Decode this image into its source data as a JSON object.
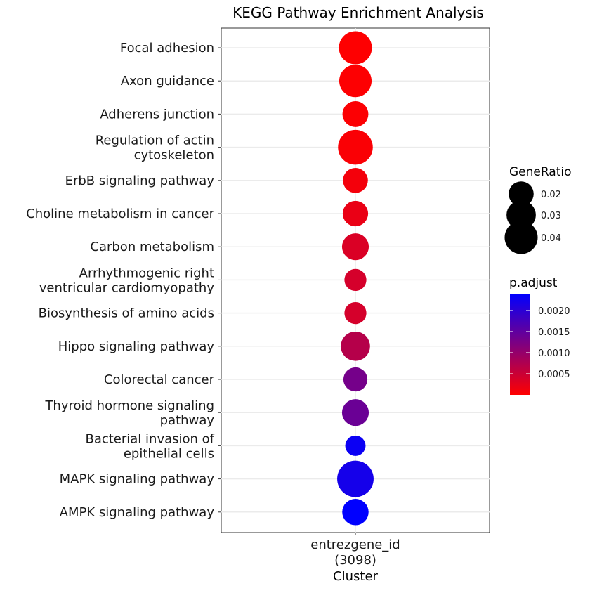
{
  "chart_data": {
    "type": "scatter",
    "title": "KEGG Pathway Enrichment Analysis",
    "xlabel": "Cluster",
    "x_categories": [
      {
        "line1": "entrezgene_id",
        "line2": "(3098)"
      }
    ],
    "points": [
      {
        "label": [
          "Focal adhesion"
        ],
        "gene_ratio": 0.04,
        "p_adjust": 1e-05
      },
      {
        "label": [
          "Axon guidance"
        ],
        "gene_ratio": 0.038,
        "p_adjust": 2e-05
      },
      {
        "label": [
          "Adherens junction"
        ],
        "gene_ratio": 0.022,
        "p_adjust": 3e-05
      },
      {
        "label": [
          "Regulation of actin",
          "cytoskeleton"
        ],
        "gene_ratio": 0.045,
        "p_adjust": 5e-05
      },
      {
        "label": [
          "ErbB signaling pathway"
        ],
        "gene_ratio": 0.02,
        "p_adjust": 0.0001
      },
      {
        "label": [
          "Choline metabolism in cancer"
        ],
        "gene_ratio": 0.021,
        "p_adjust": 0.0002
      },
      {
        "label": [
          "Carbon metabolism"
        ],
        "gene_ratio": 0.024,
        "p_adjust": 0.00035
      },
      {
        "label": [
          "Arrhythmogenic right",
          "ventricular cardiomyopathy"
        ],
        "gene_ratio": 0.014,
        "p_adjust": 0.0004
      },
      {
        "label": [
          "Biosynthesis of amino acids"
        ],
        "gene_ratio": 0.014,
        "p_adjust": 0.0004
      },
      {
        "label": [
          "Hippo signaling pathway"
        ],
        "gene_ratio": 0.03,
        "p_adjust": 0.0007
      },
      {
        "label": [
          "Colorectal cancer"
        ],
        "gene_ratio": 0.018,
        "p_adjust": 0.0013
      },
      {
        "label": [
          "Thyroid hormone signaling",
          "pathway"
        ],
        "gene_ratio": 0.024,
        "p_adjust": 0.0014
      },
      {
        "label": [
          "Bacterial invasion of",
          "epithelial cells"
        ],
        "gene_ratio": 0.011,
        "p_adjust": 0.0023
      },
      {
        "label": [
          "MAPK signaling pathway"
        ],
        "gene_ratio": 0.05,
        "p_adjust": 0.0022
      },
      {
        "label": [
          "AMPK signaling pathway"
        ],
        "gene_ratio": 0.023,
        "p_adjust": 0.0024
      }
    ],
    "size_legend": {
      "title": "GeneRatio",
      "items": [
        {
          "label": "0.02",
          "value": 0.02
        },
        {
          "label": "0.03",
          "value": 0.03
        },
        {
          "label": "0.04",
          "value": 0.04
        }
      ]
    },
    "color_legend": {
      "title": "p.adjust",
      "range": [
        0,
        0.0024
      ],
      "ticks": [
        {
          "label": "0.0020",
          "value": 0.002
        },
        {
          "label": "0.0015",
          "value": 0.0015
        },
        {
          "label": "0.0010",
          "value": 0.001
        },
        {
          "label": "0.0005",
          "value": 0.0005
        }
      ],
      "low_color": "#ff0000",
      "high_color": "#0000ff"
    },
    "grid": true,
    "legend_position": "right"
  }
}
